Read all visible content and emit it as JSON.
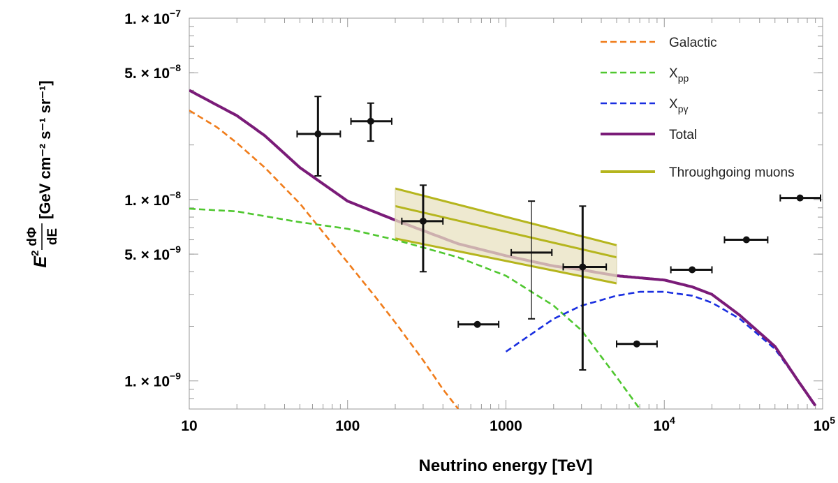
{
  "chart_data": {
    "type": "line",
    "title": "",
    "xlabel": "Neutrino energy [TeV]",
    "ylabel": {
      "prefix": "E",
      "prefix_sup": "2",
      "fraction_num": "dΦ",
      "fraction_den": "dE",
      "units": "[GeV cm⁻² s⁻¹ sr⁻¹]"
    },
    "x_scale": "log",
    "y_scale": "log",
    "xlim": [
      10,
      100000
    ],
    "ylim": [
      7e-10,
      1e-07
    ],
    "x_ticks": [
      {
        "value": 10,
        "label": "10"
      },
      {
        "value": 100,
        "label": "100"
      },
      {
        "value": 1000,
        "label": "1000"
      },
      {
        "value": 10000,
        "label": "10",
        "sup": "4"
      },
      {
        "value": 100000,
        "label": "10",
        "sup": "5"
      }
    ],
    "y_ticks": [
      {
        "value": 1e-07,
        "label": "1. × 10",
        "sup": "−7"
      },
      {
        "value": 5e-08,
        "label": "5. × 10",
        "sup": "−8"
      },
      {
        "value": 1e-08,
        "label": "1. × 10",
        "sup": "−8"
      },
      {
        "value": 5e-09,
        "label": "5. × 10",
        "sup": "−9"
      },
      {
        "value": 1e-09,
        "label": "1. × 10",
        "sup": "−9"
      }
    ],
    "legend": {
      "position": "top-right",
      "entries": [
        {
          "series": "galactic",
          "label": "Galactic",
          "sub": ""
        },
        {
          "series": "xpp",
          "label": "X",
          "sub": "pp"
        },
        {
          "series": "xpg",
          "label": "X",
          "sub": "pγ"
        },
        {
          "series": "total",
          "label": "Total",
          "sub": ""
        },
        {
          "series": "muons",
          "label": "Throughgoing muons",
          "sub": ""
        }
      ]
    },
    "series": [
      {
        "id": "galactic",
        "name": "Galactic",
        "color": "#f07c1a",
        "style": "dashed",
        "x": [
          10,
          15,
          20,
          30,
          50,
          70,
          100,
          150,
          200,
          300,
          400,
          500
        ],
        "y": [
          3.1e-08,
          2.5e-08,
          2.05e-08,
          1.5e-08,
          9.5e-09,
          6.6e-09,
          4.5e-09,
          2.9e-09,
          2.1e-09,
          1.3e-09,
          9e-10,
          7e-10
        ]
      },
      {
        "id": "xpp",
        "name": "Xpp",
        "color": "#4fc72f",
        "style": "dashed",
        "x": [
          10,
          20,
          50,
          100,
          200,
          500,
          1000,
          2000,
          3000,
          5000,
          7000
        ],
        "y": [
          8.9e-09,
          8.6e-09,
          7.5e-09,
          6.9e-09,
          6e-09,
          4.8e-09,
          3.8e-09,
          2.6e-09,
          1.9e-09,
          1.05e-09,
          7e-10
        ]
      },
      {
        "id": "xpg",
        "name": "Xpγ",
        "color": "#1a2fe0",
        "style": "dashed",
        "x": [
          1000,
          2000,
          3000,
          5000,
          7000,
          10000,
          15000,
          20000,
          30000,
          50000,
          70000,
          90000
        ],
        "y": [
          1.45e-09,
          2.2e-09,
          2.6e-09,
          2.95e-09,
          3.1e-09,
          3.1e-09,
          2.95e-09,
          2.7e-09,
          2.2e-09,
          1.5e-09,
          1e-09,
          7.2e-10
        ]
      },
      {
        "id": "total",
        "name": "Total",
        "color": "#7a1b78",
        "style": "solid",
        "x": [
          10,
          20,
          30,
          50,
          100,
          200,
          500,
          1000,
          2000,
          3000,
          5000,
          7000,
          10000,
          15000,
          20000,
          30000,
          50000,
          70000,
          90000
        ],
        "y": [
          4e-08,
          2.9e-08,
          2.25e-08,
          1.5e-08,
          9.8e-09,
          7.7e-09,
          5.7e-09,
          4.9e-09,
          4.3e-09,
          4.1e-09,
          3.8e-09,
          3.7e-09,
          3.6e-09,
          3.3e-09,
          3e-09,
          2.3e-09,
          1.55e-09,
          1e-09,
          7.3e-10
        ]
      },
      {
        "id": "muons",
        "name": "Throughgoing muons",
        "color": "#b5b51d",
        "style": "band",
        "x": [
          200,
          5000
        ],
        "y_upper": [
          1.15e-08,
          5.6e-09
        ],
        "y_central": [
          9.2e-09,
          4.8e-09
        ],
        "y_lower": [
          6.1e-09,
          3.45e-09
        ],
        "fill": "#e8e2c0"
      }
    ],
    "data_points": [
      {
        "x": 65,
        "y": 2.3e-08,
        "x_lo": 48,
        "x_hi": 90,
        "y_lo": 1.35e-08,
        "y_hi": 3.7e-08
      },
      {
        "x": 140,
        "y": 2.7e-08,
        "x_lo": 105,
        "x_hi": 190,
        "y_lo": 2.1e-08,
        "y_hi": 3.4e-08
      },
      {
        "x": 300,
        "y": 7.6e-09,
        "x_lo": 220,
        "x_hi": 400,
        "y_lo": 4e-09,
        "y_hi": 1.2e-08
      },
      {
        "x": 660,
        "y": 2.05e-09,
        "x_lo": 500,
        "x_hi": 900,
        "y_lo": 2.05e-09,
        "y_hi": 2.05e-09
      },
      {
        "x": 1450,
        "y": 5.1e-09,
        "x_lo": 1080,
        "x_hi": 1950,
        "y_lo": 2.2e-09,
        "y_hi": 9.8e-09,
        "thin": true
      },
      {
        "x": 3050,
        "y": 4.25e-09,
        "x_lo": 2300,
        "x_hi": 4300,
        "y_lo": 1.15e-09,
        "y_hi": 9.2e-09
      },
      {
        "x": 6700,
        "y": 1.6e-09,
        "x_lo": 5000,
        "x_hi": 9000,
        "y_lo": 1.6e-09,
        "y_hi": 1.6e-09
      },
      {
        "x": 15000,
        "y": 4.1e-09,
        "x_lo": 11000,
        "x_hi": 20000,
        "y_lo": 4.1e-09,
        "y_hi": 4.1e-09
      },
      {
        "x": 33000,
        "y": 6e-09,
        "x_lo": 24000,
        "x_hi": 45000,
        "y_lo": 6e-09,
        "y_hi": 6e-09
      },
      {
        "x": 72000,
        "y": 1.02e-08,
        "x_lo": 54000,
        "x_hi": 97000,
        "y_lo": 1.02e-08,
        "y_hi": 1.02e-08
      }
    ]
  }
}
